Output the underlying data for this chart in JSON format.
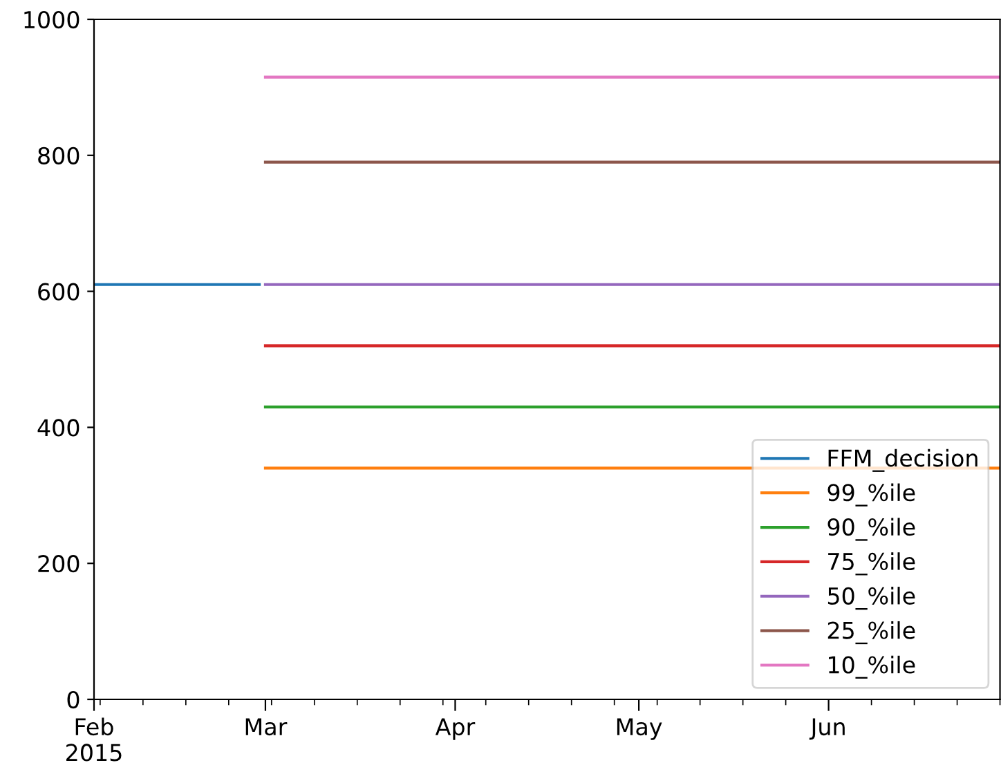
{
  "chart_data": {
    "type": "line",
    "xlim": [
      "2015-02-01",
      "2015-06-29"
    ],
    "ylim": [
      0,
      1000
    ],
    "yticks": [
      0,
      200,
      400,
      600,
      800,
      1000
    ],
    "xticks": [
      {
        "value": "2015-02-01",
        "label": "Feb\n2015"
      },
      {
        "value": "2015-03-01",
        "label": "Mar"
      },
      {
        "value": "2015-04-01",
        "label": "Apr"
      },
      {
        "value": "2015-05-01",
        "label": "May"
      },
      {
        "value": "2015-06-01",
        "label": "Jun"
      }
    ],
    "legend": "bottom right",
    "grid": false,
    "series": [
      {
        "name": "FFM_decision",
        "color": "#1f77b4",
        "x": [
          "2015-02-01",
          "2015-02-28"
        ],
        "values": [
          610,
          610
        ]
      },
      {
        "name": "99_%ile",
        "color": "#ff7f0e",
        "x": [
          "2015-03-01",
          "2015-06-29"
        ],
        "values": [
          340,
          340
        ]
      },
      {
        "name": "90_%ile",
        "color": "#2ca02c",
        "x": [
          "2015-03-01",
          "2015-06-29"
        ],
        "values": [
          430,
          430
        ]
      },
      {
        "name": "75_%ile",
        "color": "#d62728",
        "x": [
          "2015-03-01",
          "2015-06-29"
        ],
        "values": [
          520,
          520
        ]
      },
      {
        "name": "50_%ile",
        "color": "#9467bd",
        "x": [
          "2015-03-01",
          "2015-06-29"
        ],
        "values": [
          610,
          610
        ]
      },
      {
        "name": "25_%ile",
        "color": "#8c564b",
        "x": [
          "2015-03-01",
          "2015-06-29"
        ],
        "values": [
          790,
          790
        ]
      },
      {
        "name": "10_%ile",
        "color": "#e377c2",
        "x": [
          "2015-03-01",
          "2015-06-29"
        ],
        "values": [
          915,
          915
        ]
      }
    ]
  }
}
